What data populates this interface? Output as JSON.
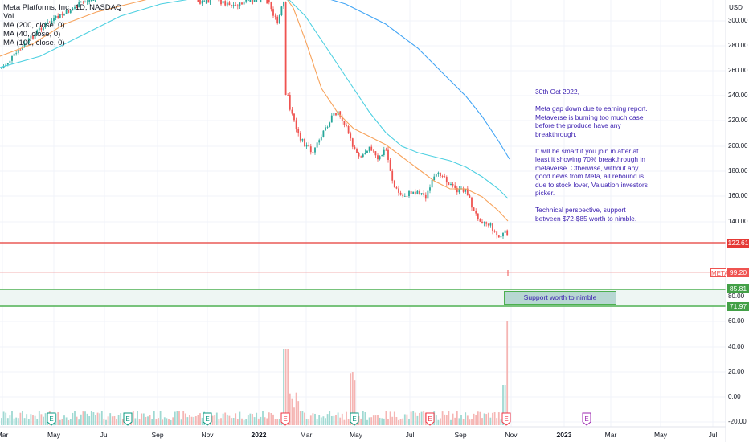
{
  "legend": {
    "title": "Meta Platforms, Inc., 1D, NASDAQ",
    "vol": "Vol",
    "ma1": "MA (200, close, 0)",
    "ma2": "MA (40, close, 0)",
    "ma3": "MA (100, close, 0)"
  },
  "currency": "USD",
  "price_axis": [
    "300.00",
    "280.00",
    "260.00",
    "240.00",
    "220.00",
    "200.00",
    "180.00",
    "160.00",
    "140.00",
    "80.00",
    "60.00",
    "40.00",
    "20.00",
    "0.00",
    "-20.00"
  ],
  "time_axis": [
    "Mar",
    "May",
    "Jul",
    "Sep",
    "Nov",
    "2022",
    "Mar",
    "May",
    "Jul",
    "Sep",
    "Nov",
    "2023",
    "Mar",
    "May",
    "Jul"
  ],
  "price_tags": {
    "resistance": "122.61",
    "current": "99.20",
    "symbol": "META",
    "support_top": "85.81",
    "support_bottom": "71.97"
  },
  "colors": {
    "up": "#26a69a",
    "down": "#ef5350",
    "ma_orange": "#f7a35c",
    "ma_teal": "#4dd0e1",
    "ma_blue": "#42a5f5",
    "support_line": "#4caf50",
    "resistance_line": "#e53935",
    "annotation_text": "#3b1fb0",
    "earnings_up": "#089981",
    "earnings_down": "#f23645",
    "earnings_future": "#9c27b0"
  },
  "note": {
    "date": "30th Oct 2022,",
    "p1": "Meta gap down due to earning report. Metaverse is burning too much case before the produce have any breakthrough.",
    "p2": "It will be smart if you join in after at least it showing 70% breakthrough in metaverse. Otherwise, without any good news from Meta, all rebound is due to stock lover, Valuation investors picker.",
    "p3": "Technical perspective, support between $72-$85  worth to nimble."
  },
  "support_label": "Support worth to nimble",
  "earnings_marker": "E",
  "earnings": [
    {
      "status": "reported-beat"
    },
    {
      "status": "reported-beat"
    },
    {
      "status": "reported-beat"
    },
    {
      "status": "reported-miss"
    },
    {
      "status": "reported-beat"
    },
    {
      "status": "reported-miss"
    },
    {
      "status": "reported-miss"
    },
    {
      "status": "upcoming"
    }
  ]
}
